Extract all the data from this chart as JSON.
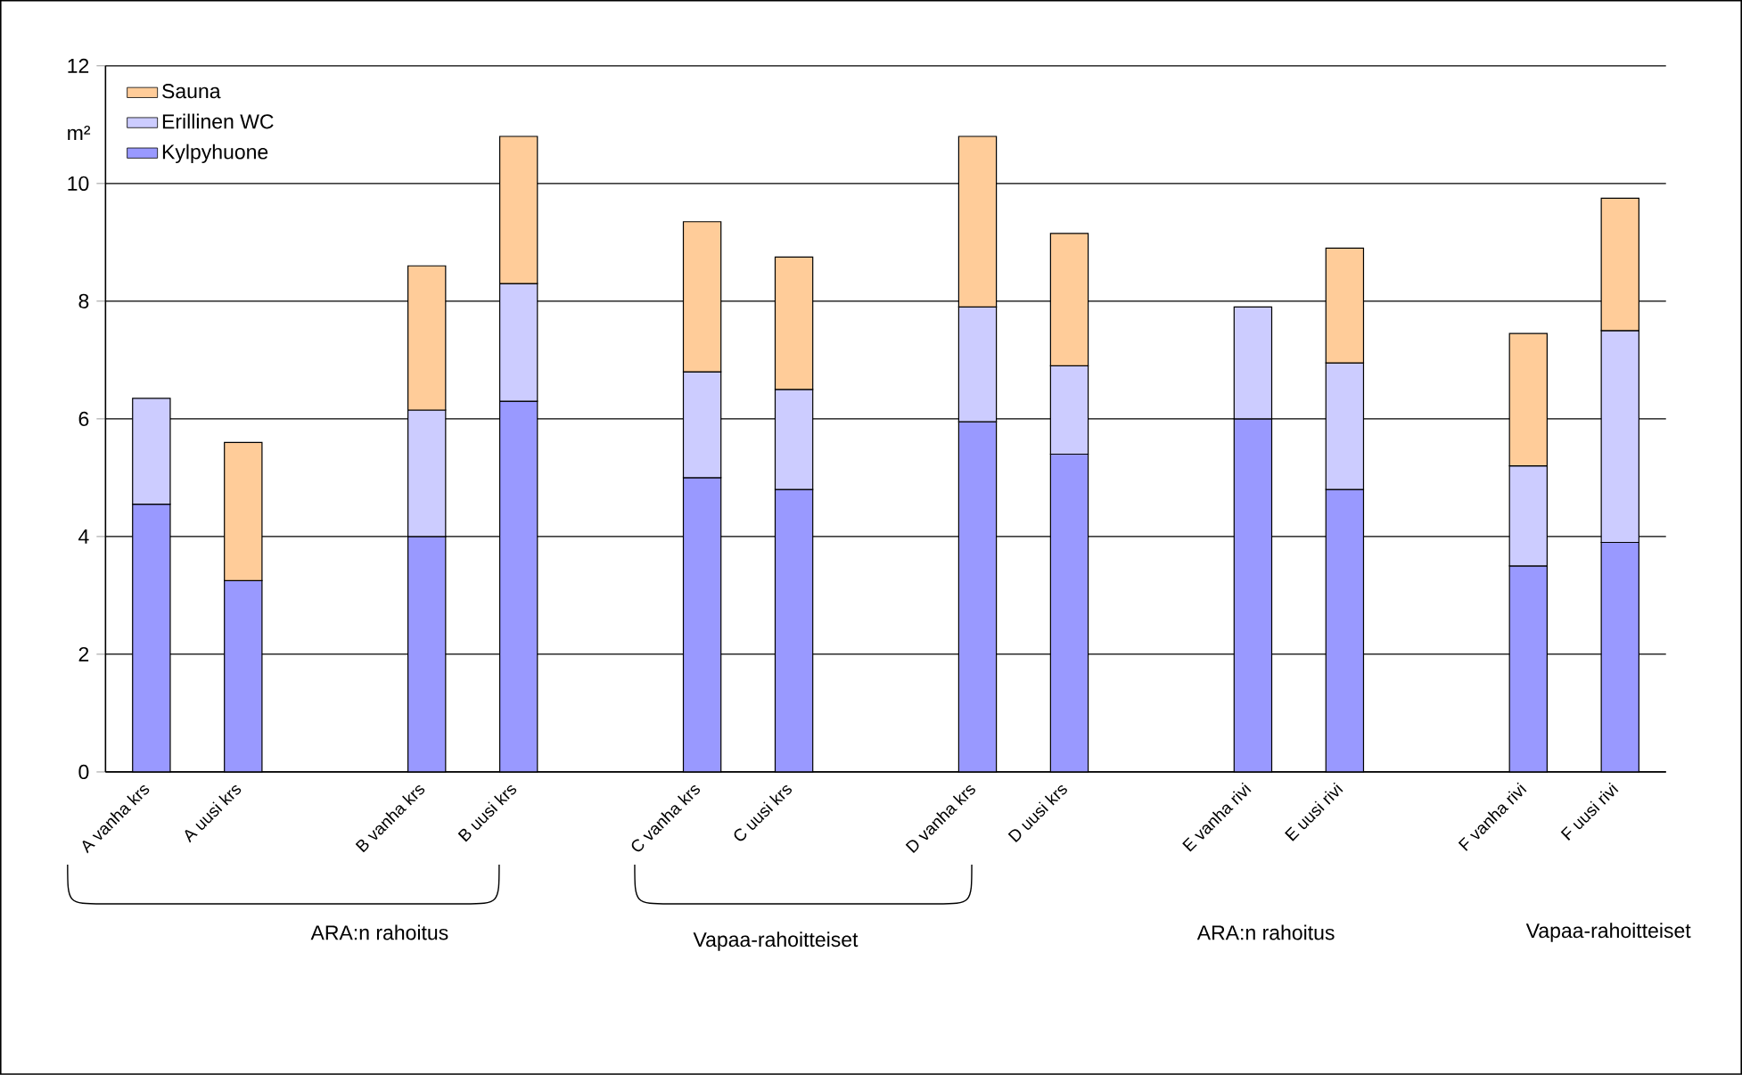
{
  "chart_data": {
    "type": "bar",
    "stacked": true,
    "ylabel": "m²",
    "categories": [
      "A vanha krs",
      "A uusi krs",
      null,
      "B vanha krs",
      "B uusi krs",
      null,
      "C vanha krs",
      "C uusi krs",
      null,
      "D vanha krs",
      "D uusi krs",
      null,
      "E vanha rivi",
      "E uusi rivi",
      null,
      "F vanha rivi",
      "F uusi rivi"
    ],
    "series": [
      {
        "name": "Kylpyhuone",
        "color": "#9999ff",
        "values": [
          4.55,
          3.25,
          null,
          4.0,
          6.3,
          null,
          5.0,
          4.8,
          null,
          5.95,
          5.4,
          null,
          6.0,
          4.8,
          null,
          3.5,
          3.9
        ]
      },
      {
        "name": "Erillinen WC",
        "color": "#ccccff",
        "values": [
          1.8,
          null,
          null,
          2.15,
          2.0,
          null,
          1.8,
          1.7,
          null,
          1.95,
          1.5,
          null,
          1.9,
          2.15,
          null,
          1.7,
          3.6
        ]
      },
      {
        "name": "Sauna",
        "color": "#ffcc99",
        "values": [
          null,
          2.35,
          null,
          2.45,
          2.5,
          null,
          2.55,
          2.25,
          null,
          2.9,
          2.25,
          null,
          null,
          1.95,
          null,
          2.25,
          2.25
        ]
      }
    ],
    "ylim": [
      0,
      12
    ],
    "yticks": [
      0,
      2,
      4,
      6,
      8,
      10,
      12
    ],
    "grid": "y",
    "legend": "top left",
    "annotations": [
      "ARA:n rahoitus",
      "Vapaa-rahoitteiset",
      "ARA:n rahoitus",
      "Vapaa-rahoitteiset"
    ]
  }
}
